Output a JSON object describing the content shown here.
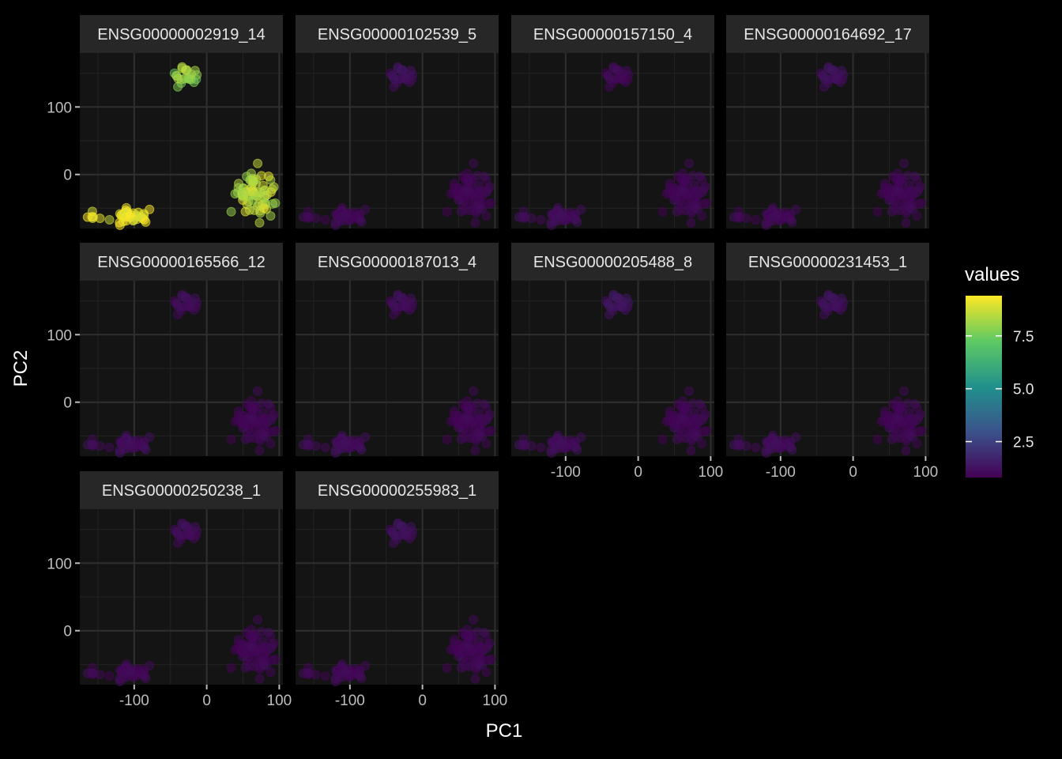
{
  "chart_data": {
    "type": "scatter",
    "facet_by": "gene",
    "xlabel": "PC1",
    "ylabel": "PC2",
    "x_ticks": [
      -100,
      0,
      100
    ],
    "y_ticks": [
      0,
      100
    ],
    "xlim": [
      -175,
      105
    ],
    "ylim": [
      -80,
      180
    ],
    "grid": true,
    "legend": {
      "title": "values",
      "position": "right",
      "type": "colorbar",
      "range": [
        0.8,
        9.4
      ],
      "ticks": [
        "2.5",
        "5.0",
        "7.5"
      ],
      "tick_values": [
        2.5,
        5.0,
        7.5
      ],
      "palette": [
        "#440154",
        "#3b528b",
        "#21918c",
        "#5ec962",
        "#fde725"
      ]
    },
    "clusters": [
      {
        "name": "left",
        "cx": -105,
        "cy": -62,
        "n": 42
      },
      {
        "name": "top",
        "cx": -30,
        "cy": 145,
        "n": 22
      },
      {
        "name": "right",
        "cx": 65,
        "cy": -28,
        "n": 72
      }
    ],
    "facets": [
      {
        "label": "ENSG00000002919_14",
        "cluster_values": {
          "left": 9.2,
          "top": 8.0,
          "right": 8.6
        }
      },
      {
        "label": "ENSG00000102539_5",
        "cluster_values": {
          "left": 1.0,
          "top": 1.2,
          "right": 1.0
        }
      },
      {
        "label": "ENSG00000157150_4",
        "cluster_values": {
          "left": 1.1,
          "top": 1.0,
          "right": 1.0
        }
      },
      {
        "label": "ENSG00000164692_17",
        "cluster_values": {
          "left": 1.0,
          "top": 1.2,
          "right": 1.0
        }
      },
      {
        "label": "ENSG00000165566_12",
        "cluster_values": {
          "left": 1.1,
          "top": 1.1,
          "right": 1.0
        }
      },
      {
        "label": "ENSG00000187013_4",
        "cluster_values": {
          "left": 1.1,
          "top": 1.1,
          "right": 1.0
        }
      },
      {
        "label": "ENSG00000205488_8",
        "cluster_values": {
          "left": 1.1,
          "top": 1.3,
          "right": 1.0
        }
      },
      {
        "label": "ENSG00000231453_1",
        "cluster_values": {
          "left": 1.1,
          "top": 1.2,
          "right": 1.0
        }
      },
      {
        "label": "ENSG00000250238_1",
        "cluster_values": {
          "left": 1.0,
          "top": 1.1,
          "right": 1.0
        }
      },
      {
        "label": "ENSG00000255983_1",
        "cluster_values": {
          "left": 1.0,
          "top": 1.2,
          "right": 1.0
        }
      }
    ]
  }
}
